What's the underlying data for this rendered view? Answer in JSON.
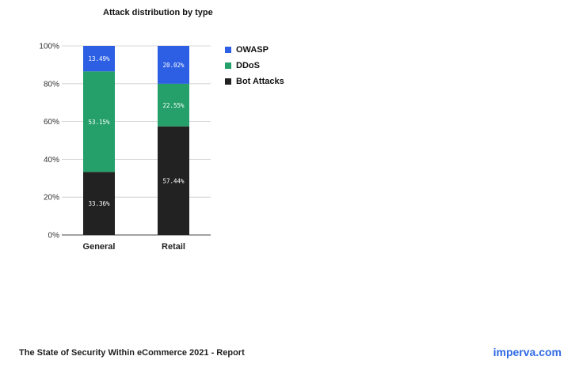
{
  "chart_data": {
    "type": "bar",
    "stacked": true,
    "title": "Attack distribution by type",
    "categories": [
      "General",
      "Retail"
    ],
    "series": [
      {
        "name": "Bot Attacks",
        "values": [
          33.36,
          57.44
        ],
        "labels": [
          "33.36%",
          "57.44%"
        ],
        "color": "#222222"
      },
      {
        "name": "DDoS",
        "values": [
          53.15,
          22.55
        ],
        "labels": [
          "53.15%",
          "22.55%"
        ],
        "color": "#25a06a"
      },
      {
        "name": "OWASP",
        "values": [
          13.49,
          20.02
        ],
        "labels": [
          "13.49%",
          "20.02%"
        ],
        "color": "#2c5fe3"
      }
    ],
    "legend_order": [
      "OWASP",
      "DDoS",
      "Bot Attacks"
    ],
    "ylim": [
      0,
      100
    ],
    "yticks": [
      "0%",
      "20%",
      "40%",
      "60%",
      "80%",
      "100%"
    ],
    "grid": true,
    "legend_position": "right"
  },
  "footer": {
    "report_title": "The State of Security Within eCommerce 2021 - Report",
    "brand": "imperva.com"
  }
}
